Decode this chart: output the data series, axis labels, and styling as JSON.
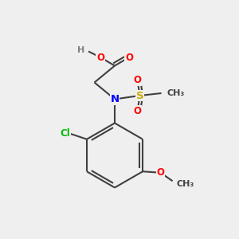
{
  "background_color": "#efefef",
  "bond_color": "#404040",
  "atom_colors": {
    "N": "#0000ff",
    "O": "#ff0000",
    "S": "#ccaa00",
    "Cl": "#00bb00",
    "C": "#404040",
    "H": "#808080"
  },
  "bond_lw": 1.5,
  "font_size": 9.5,
  "fig_size": [
    3.0,
    3.0
  ],
  "dpi": 100,
  "xlim": [
    0,
    10
  ],
  "ylim": [
    0,
    10
  ]
}
